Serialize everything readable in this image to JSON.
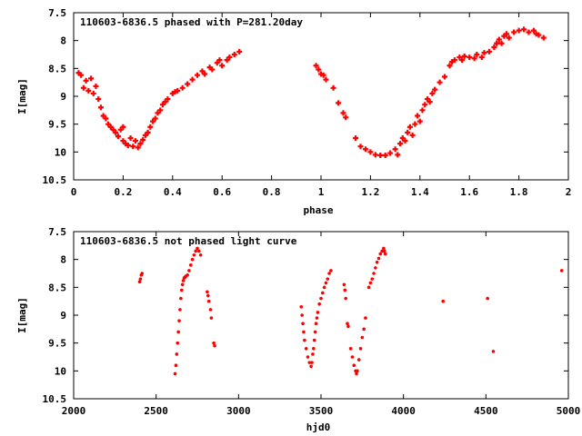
{
  "chart_data": [
    {
      "type": "scatter",
      "title": "110603-6836.5 phased with P=281.20day",
      "xlabel": "phase",
      "ylabel": "I[mag]",
      "xlim": [
        0,
        2
      ],
      "ylim": [
        10.5,
        7.5
      ],
      "y_inverted": true,
      "xticks": [
        "0",
        "0.2",
        "0.4",
        "0.6",
        "0.8",
        "1",
        "1.2",
        "1.4",
        "1.6",
        "1.8",
        "2"
      ],
      "yticks": [
        "7.5",
        "8",
        "8.5",
        "9",
        "9.5",
        "10",
        "10.5"
      ],
      "marker": "plus",
      "color": "#ff0000",
      "points": [
        [
          0.02,
          8.58
        ],
        [
          0.03,
          8.62
        ],
        [
          0.04,
          8.85
        ],
        [
          0.05,
          8.72
        ],
        [
          0.06,
          8.9
        ],
        [
          0.07,
          8.68
        ],
        [
          0.08,
          8.95
        ],
        [
          0.09,
          8.82
        ],
        [
          0.1,
          9.05
        ],
        [
          0.11,
          9.2
        ],
        [
          0.12,
          9.35
        ],
        [
          0.13,
          9.4
        ],
        [
          0.14,
          9.5
        ],
        [
          0.15,
          9.55
        ],
        [
          0.16,
          9.6
        ],
        [
          0.17,
          9.65
        ],
        [
          0.18,
          9.72
        ],
        [
          0.19,
          9.6
        ],
        [
          0.2,
          9.8
        ],
        [
          0.2,
          9.55
        ],
        [
          0.21,
          9.85
        ],
        [
          0.22,
          9.88
        ],
        [
          0.23,
          9.75
        ],
        [
          0.24,
          9.9
        ],
        [
          0.25,
          9.8
        ],
        [
          0.26,
          9.92
        ],
        [
          0.27,
          9.85
        ],
        [
          0.28,
          9.78
        ],
        [
          0.29,
          9.7
        ],
        [
          0.3,
          9.65
        ],
        [
          0.31,
          9.55
        ],
        [
          0.32,
          9.45
        ],
        [
          0.33,
          9.4
        ],
        [
          0.34,
          9.3
        ],
        [
          0.35,
          9.25
        ],
        [
          0.36,
          9.15
        ],
        [
          0.37,
          9.1
        ],
        [
          0.38,
          9.05
        ],
        [
          0.4,
          8.95
        ],
        [
          0.41,
          8.92
        ],
        [
          0.42,
          8.9
        ],
        [
          0.44,
          8.85
        ],
        [
          0.46,
          8.78
        ],
        [
          0.48,
          8.7
        ],
        [
          0.5,
          8.62
        ],
        [
          0.52,
          8.55
        ],
        [
          0.53,
          8.6
        ],
        [
          0.55,
          8.48
        ],
        [
          0.56,
          8.52
        ],
        [
          0.58,
          8.4
        ],
        [
          0.59,
          8.35
        ],
        [
          0.6,
          8.45
        ],
        [
          0.62,
          8.35
        ],
        [
          0.63,
          8.3
        ],
        [
          0.65,
          8.25
        ],
        [
          0.67,
          8.2
        ],
        [
          0.98,
          8.45
        ],
        [
          0.99,
          8.52
        ],
        [
          1.0,
          8.6
        ],
        [
          1.01,
          8.62
        ],
        [
          1.02,
          8.7
        ],
        [
          1.05,
          8.85
        ],
        [
          1.07,
          9.12
        ],
        [
          1.09,
          9.3
        ],
        [
          1.1,
          9.38
        ],
        [
          1.14,
          9.75
        ],
        [
          1.16,
          9.9
        ],
        [
          1.18,
          9.95
        ],
        [
          1.2,
          10.0
        ],
        [
          1.22,
          10.05
        ],
        [
          1.24,
          10.06
        ],
        [
          1.26,
          10.06
        ],
        [
          1.28,
          10.02
        ],
        [
          1.3,
          9.95
        ],
        [
          1.31,
          10.05
        ],
        [
          1.32,
          9.85
        ],
        [
          1.33,
          9.75
        ],
        [
          1.34,
          9.8
        ],
        [
          1.35,
          9.65
        ],
        [
          1.36,
          9.55
        ],
        [
          1.37,
          9.7
        ],
        [
          1.38,
          9.5
        ],
        [
          1.39,
          9.35
        ],
        [
          1.4,
          9.45
        ],
        [
          1.41,
          9.25
        ],
        [
          1.42,
          9.15
        ],
        [
          1.43,
          9.05
        ],
        [
          1.44,
          9.1
        ],
        [
          1.45,
          8.95
        ],
        [
          1.46,
          8.88
        ],
        [
          1.48,
          8.75
        ],
        [
          1.5,
          8.65
        ],
        [
          1.52,
          8.45
        ],
        [
          1.53,
          8.38
        ],
        [
          1.54,
          8.35
        ],
        [
          1.56,
          8.3
        ],
        [
          1.57,
          8.35
        ],
        [
          1.58,
          8.28
        ],
        [
          1.6,
          8.3
        ],
        [
          1.62,
          8.32
        ],
        [
          1.63,
          8.25
        ],
        [
          1.65,
          8.3
        ],
        [
          1.66,
          8.22
        ],
        [
          1.68,
          8.2
        ],
        [
          1.7,
          8.12
        ],
        [
          1.71,
          8.05
        ],
        [
          1.72,
          7.98
        ],
        [
          1.73,
          8.05
        ],
        [
          1.74,
          7.92
        ],
        [
          1.75,
          7.88
        ],
        [
          1.76,
          7.95
        ],
        [
          1.78,
          7.85
        ],
        [
          1.8,
          7.82
        ],
        [
          1.82,
          7.8
        ],
        [
          1.84,
          7.85
        ],
        [
          1.86,
          7.82
        ],
        [
          1.87,
          7.88
        ],
        [
          1.88,
          7.9
        ],
        [
          1.9,
          7.95
        ]
      ]
    },
    {
      "type": "scatter",
      "title": "110603-6836.5 not phased light curve",
      "xlabel": "hjd0",
      "ylabel": "I[mag]",
      "xlim": [
        2000,
        5000
      ],
      "ylim": [
        10.5,
        7.5
      ],
      "y_inverted": true,
      "xticks": [
        "2000",
        "2500",
        "3000",
        "3500",
        "4000",
        "4500",
        "5000"
      ],
      "yticks": [
        "7.5",
        "8",
        "8.5",
        "9",
        "9.5",
        "10",
        "10.5"
      ],
      "marker": "dot",
      "color": "#ff0000",
      "points": [
        [
          2400,
          8.4
        ],
        [
          2405,
          8.35
        ],
        [
          2410,
          8.28
        ],
        [
          2415,
          8.25
        ],
        [
          2615,
          10.05
        ],
        [
          2620,
          9.9
        ],
        [
          2625,
          9.7
        ],
        [
          2630,
          9.5
        ],
        [
          2635,
          9.3
        ],
        [
          2640,
          9.1
        ],
        [
          2645,
          8.9
        ],
        [
          2650,
          8.7
        ],
        [
          2655,
          8.55
        ],
        [
          2660,
          8.45
        ],
        [
          2665,
          8.38
        ],
        [
          2670,
          8.33
        ],
        [
          2675,
          8.32
        ],
        [
          2680,
          8.3
        ],
        [
          2690,
          8.28
        ],
        [
          2700,
          8.2
        ],
        [
          2710,
          8.1
        ],
        [
          2720,
          8.0
        ],
        [
          2730,
          7.92
        ],
        [
          2740,
          7.85
        ],
        [
          2750,
          7.8
        ],
        [
          2760,
          7.85
        ],
        [
          2770,
          7.92
        ],
        [
          2810,
          8.58
        ],
        [
          2815,
          8.65
        ],
        [
          2820,
          8.75
        ],
        [
          2830,
          8.9
        ],
        [
          2835,
          9.05
        ],
        [
          2850,
          9.5
        ],
        [
          2855,
          9.55
        ],
        [
          3380,
          8.85
        ],
        [
          3385,
          9.0
        ],
        [
          3390,
          9.15
        ],
        [
          3395,
          9.3
        ],
        [
          3400,
          9.45
        ],
        [
          3410,
          9.6
        ],
        [
          3420,
          9.75
        ],
        [
          3430,
          9.85
        ],
        [
          3440,
          9.92
        ],
        [
          3445,
          9.85
        ],
        [
          3450,
          9.7
        ],
        [
          3455,
          9.6
        ],
        [
          3460,
          9.45
        ],
        [
          3465,
          9.3
        ],
        [
          3470,
          9.15
        ],
        [
          3475,
          9.05
        ],
        [
          3480,
          8.95
        ],
        [
          3490,
          8.8
        ],
        [
          3500,
          8.7
        ],
        [
          3510,
          8.6
        ],
        [
          3520,
          8.5
        ],
        [
          3530,
          8.42
        ],
        [
          3540,
          8.35
        ],
        [
          3550,
          8.25
        ],
        [
          3560,
          8.2
        ],
        [
          3640,
          8.45
        ],
        [
          3645,
          8.55
        ],
        [
          3650,
          8.7
        ],
        [
          3660,
          9.15
        ],
        [
          3665,
          9.2
        ],
        [
          3680,
          9.6
        ],
        [
          3690,
          9.75
        ],
        [
          3700,
          9.9
        ],
        [
          3710,
          10.0
        ],
        [
          3715,
          10.05
        ],
        [
          3720,
          10.0
        ],
        [
          3730,
          9.8
        ],
        [
          3740,
          9.6
        ],
        [
          3750,
          9.4
        ],
        [
          3760,
          9.25
        ],
        [
          3770,
          9.05
        ],
        [
          3790,
          8.5
        ],
        [
          3800,
          8.42
        ],
        [
          3810,
          8.35
        ],
        [
          3820,
          8.25
        ],
        [
          3830,
          8.15
        ],
        [
          3840,
          8.05
        ],
        [
          3850,
          7.98
        ],
        [
          3860,
          7.9
        ],
        [
          3870,
          7.85
        ],
        [
          3880,
          7.8
        ],
        [
          3885,
          7.85
        ],
        [
          3890,
          7.9
        ],
        [
          4240,
          8.75
        ],
        [
          4510,
          8.7
        ],
        [
          4545,
          9.65
        ],
        [
          4960,
          8.2
        ]
      ]
    }
  ]
}
